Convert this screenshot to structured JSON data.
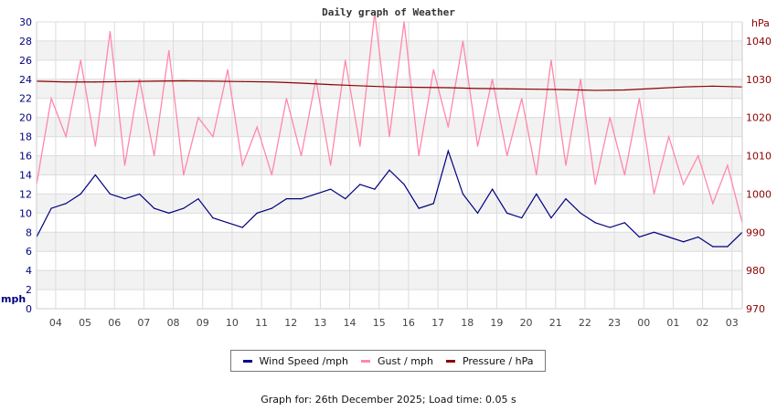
{
  "chart_data": {
    "type": "line",
    "title": "Daily graph of Weather",
    "ylabel_left": "mph",
    "ylabel_right": "hPa",
    "ylim_left": [
      0,
      30
    ],
    "ylim_right": [
      970,
      1045
    ],
    "yticks_left": [
      0,
      2,
      4,
      6,
      8,
      10,
      12,
      14,
      16,
      18,
      20,
      22,
      24,
      26,
      28,
      30
    ],
    "yticks_right": [
      970,
      980,
      990,
      1000,
      1010,
      1020,
      1030,
      1040
    ],
    "xlim_hours": [
      0,
      24
    ],
    "xticks": [
      {
        "label": "04",
        "at": 0.65
      },
      {
        "label": "05",
        "at": 1.65
      },
      {
        "label": "06",
        "at": 2.65
      },
      {
        "label": "07",
        "at": 3.65
      },
      {
        "label": "08",
        "at": 4.65
      },
      {
        "label": "09",
        "at": 5.65
      },
      {
        "label": "10",
        "at": 6.65
      },
      {
        "label": "11",
        "at": 7.65
      },
      {
        "label": "12",
        "at": 8.65
      },
      {
        "label": "13",
        "at": 9.65
      },
      {
        "label": "14",
        "at": 10.65
      },
      {
        "label": "15",
        "at": 11.65
      },
      {
        "label": "16",
        "at": 12.65
      },
      {
        "label": "17",
        "at": 13.65
      },
      {
        "label": "18",
        "at": 14.65
      },
      {
        "label": "19",
        "at": 15.65
      },
      {
        "label": "20",
        "at": 16.65
      },
      {
        "label": "21",
        "at": 17.65
      },
      {
        "label": "22",
        "at": 18.65
      },
      {
        "label": "23",
        "at": 19.65
      },
      {
        "label": "00",
        "at": 20.65
      },
      {
        "label": "01",
        "at": 21.65
      },
      {
        "label": "02",
        "at": 22.65
      },
      {
        "label": "03",
        "at": 23.65
      }
    ],
    "series": [
      {
        "name": "Wind Speed /mph",
        "color": "#000080",
        "axis": "left",
        "step_hours": 0.5,
        "values": [
          7.5,
          10.5,
          11,
          12,
          14,
          12,
          11.5,
          12,
          10.5,
          10,
          10.5,
          11.5,
          9.5,
          9,
          8.5,
          10,
          10.5,
          11.5,
          11.5,
          12,
          12.5,
          11.5,
          13,
          12.5,
          14.5,
          13,
          10.5,
          11,
          16.5,
          12,
          10,
          12.5,
          10,
          9.5,
          12,
          9.5,
          11.5,
          10,
          9,
          8.5,
          9,
          7.5,
          8,
          7.5,
          7,
          7.5,
          6.5,
          6.5,
          8
        ]
      },
      {
        "name": "Gust / mph",
        "color": "#ff88aa",
        "axis": "left",
        "step_hours": 0.5,
        "values": [
          13,
          22,
          18,
          26,
          17,
          29,
          15,
          24,
          16,
          27,
          14,
          20,
          18,
          25,
          15,
          19,
          14,
          22,
          16,
          24,
          15,
          26,
          17,
          31,
          18,
          30,
          16,
          25,
          19,
          28,
          17,
          24,
          16,
          22,
          14,
          26,
          15,
          24,
          13,
          20,
          14,
          22,
          12,
          18,
          13,
          16,
          11,
          15,
          9
        ]
      },
      {
        "name": "Pressure / hPa",
        "color": "#8b0000",
        "axis": "right",
        "step_hours": 1,
        "values": [
          1029.5,
          1029.3,
          1029.3,
          1029.4,
          1029.5,
          1029.6,
          1029.5,
          1029.4,
          1029.3,
          1029.0,
          1028.6,
          1028.3,
          1028.0,
          1027.9,
          1027.8,
          1027.6,
          1027.5,
          1027.4,
          1027.3,
          1027.1,
          1027.2,
          1027.6,
          1028.0,
          1028.2,
          1028.0
        ]
      }
    ],
    "legend_position": "bottom"
  },
  "footer": "Graph for: 26th December 2025; Load time: 0.05 s"
}
